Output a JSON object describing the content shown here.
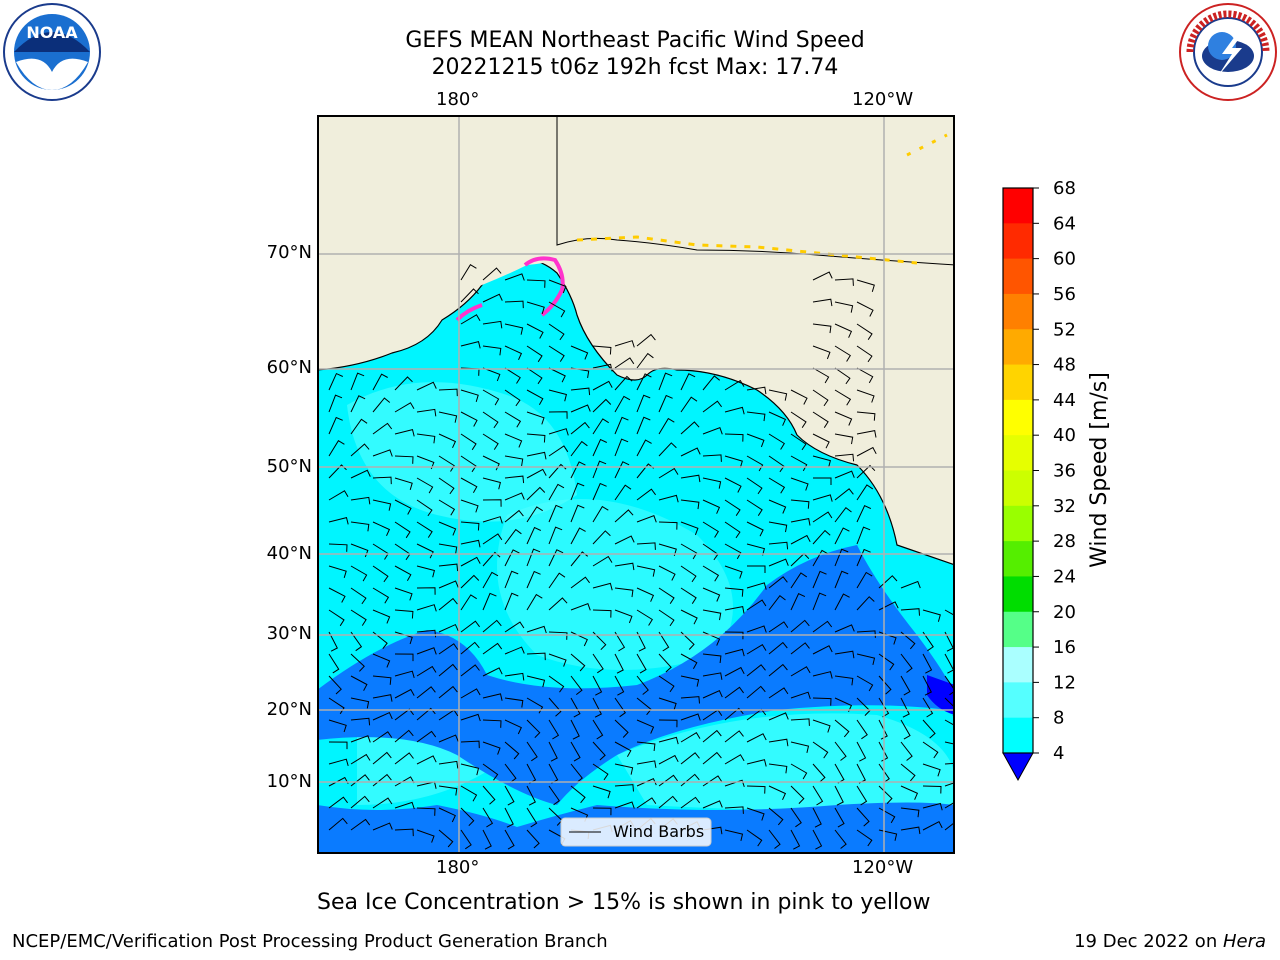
{
  "title_line1": "GEFS MEAN Northeast Pacific Wind Speed",
  "title_line2": "20221215 t06z 192h fcst   Max: 17.74",
  "lon_ticks": [
    "180°",
    "120°W"
  ],
  "lat_ticks": [
    "70°N",
    "60°N",
    "50°N",
    "40°N",
    "30°N",
    "20°N",
    "10°N"
  ],
  "legend_label": "Wind Barbs",
  "colorbar": {
    "label": "Wind Speed [m/s]",
    "ticks": [
      "68",
      "64",
      "60",
      "56",
      "52",
      "48",
      "44",
      "40",
      "36",
      "32",
      "28",
      "24",
      "20",
      "16",
      "12",
      "8",
      "4"
    ],
    "colors": [
      "#ff0000",
      "#ff2a00",
      "#ff5500",
      "#ff8000",
      "#ffaa00",
      "#ffd400",
      "#ffff00",
      "#e6ff00",
      "#ccff00",
      "#99ff00",
      "#55ee00",
      "#00dd00",
      "#55ff88",
      "#aaffff",
      "#55ffff",
      "#00ffff",
      "#0080ff"
    ],
    "under_color": "#0000ff"
  },
  "colors": {
    "land": "#f0eedc",
    "deep_blue": "#0a7bff",
    "cyan": "#00f5ff",
    "light_cyan": "#55ffff",
    "grid": "#b0b0b0"
  },
  "caption": "Sea Ice Concentration > 15% is shown in pink to yellow",
  "footer_left": "NCEP/EMC/Verification Post Processing Product Generation Branch",
  "footer_right_prefix": "19 Dec 2022 on ",
  "footer_right_host": "Hera",
  "logos": {
    "noaa": "NOAA",
    "nws": "NATIONAL WEATHER SERVICE"
  }
}
